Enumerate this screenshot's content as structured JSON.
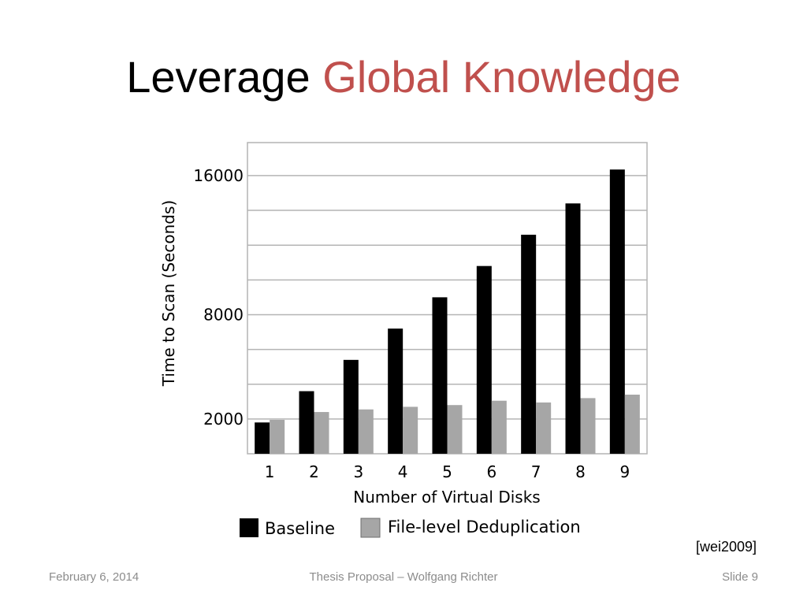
{
  "slide": {
    "title_plain": "Leverage",
    "title_accent": "Global Knowledge",
    "citation": "[wei2009]",
    "footer_date": "February 6, 2014",
    "footer_center": "Thesis Proposal – Wolfgang Richter",
    "footer_slide": "Slide 9",
    "accent_color": "#c0504d"
  },
  "chart_data": {
    "type": "bar",
    "title": "",
    "xlabel": "Number of Virtual Disks",
    "ylabel": "Time to Scan (Seconds)",
    "categories": [
      "1",
      "2",
      "3",
      "4",
      "5",
      "6",
      "7",
      "8",
      "9"
    ],
    "y_ticks": [
      2000,
      8000,
      16000
    ],
    "ylim": [
      0,
      17900
    ],
    "grid": true,
    "legend_position": "bottom",
    "series": [
      {
        "name": "Baseline",
        "color": "#000000",
        "values": [
          1800,
          3600,
          5400,
          7200,
          9000,
          10800,
          12600,
          14400,
          16350
        ]
      },
      {
        "name": "File-level Deduplication",
        "color": "#a6a6a6",
        "values": [
          1950,
          2400,
          2550,
          2700,
          2800,
          3050,
          2950,
          3200,
          3400
        ]
      }
    ]
  }
}
